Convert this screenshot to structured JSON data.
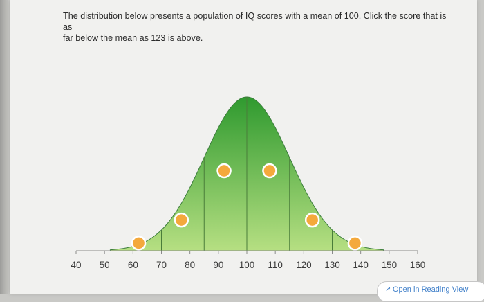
{
  "question": {
    "prompt_line1": "The distribution below presents a population of IQ scores with a mean of 100. Click the score that is as",
    "prompt_line2": "far below the mean as 123 is above."
  },
  "chart_data": {
    "type": "area",
    "distribution": "normal",
    "mean": 100,
    "x_ticks": [
      40,
      50,
      60,
      70,
      80,
      90,
      100,
      110,
      120,
      130,
      140,
      150,
      160
    ],
    "xlim": [
      40,
      160
    ],
    "shaded_bands": [
      70,
      85,
      100,
      115,
      130
    ],
    "selectable_points": [
      {
        "score": 62,
        "density": 0.05
      },
      {
        "score": 77,
        "density": 0.2
      },
      {
        "score": 92,
        "density": 0.52
      },
      {
        "score": 108,
        "density": 0.52
      },
      {
        "score": 123,
        "density": 0.2
      },
      {
        "score": 138,
        "density": 0.05
      }
    ],
    "colors": {
      "curve_top": "#2f9a2f",
      "curve_bottom": "#b6df82",
      "point_fill": "#f4a93c",
      "point_stroke": "#ffffff"
    }
  },
  "footer": {
    "reading_view_label": "Open in Reading View",
    "reading_view_icon": "external-link-icon"
  }
}
